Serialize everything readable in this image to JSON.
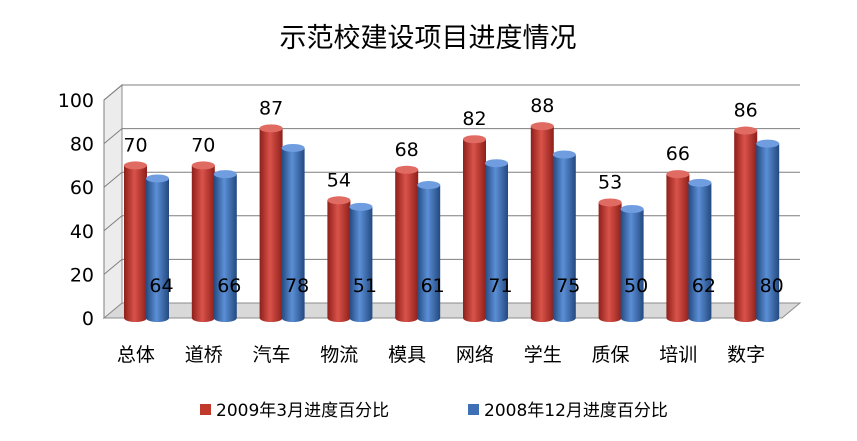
{
  "chart_data": {
    "type": "bar",
    "title": "示范校建设项目进度情况",
    "xlabel": "",
    "ylabel": "",
    "ylim": [
      0,
      100
    ],
    "yticks": [
      0,
      20,
      40,
      60,
      80,
      100
    ],
    "grid": true,
    "legend_position": "bottom",
    "categories": [
      "总体",
      "道桥",
      "汽车",
      "物流",
      "模具",
      "网络",
      "学生",
      "质保",
      "培训",
      "数字"
    ],
    "series": [
      {
        "name": "2009年3月进度百分比",
        "color": "#c0392b",
        "values": [
          70,
          70,
          87,
          54,
          68,
          82,
          88,
          53,
          66,
          86
        ],
        "label_position": "above"
      },
      {
        "name": "2008年12月进度百分比",
        "color": "#3f6fb5",
        "values": [
          64,
          66,
          78,
          51,
          61,
          71,
          75,
          50,
          62,
          80
        ],
        "label_position": "inside-bottom"
      }
    ]
  }
}
